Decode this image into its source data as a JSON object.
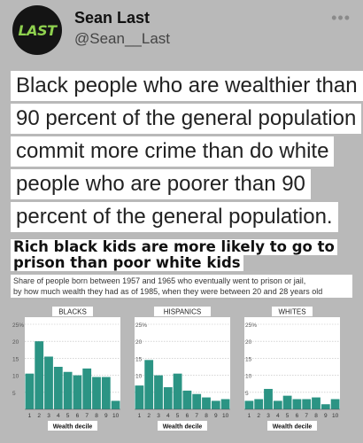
{
  "post": {
    "author_name": "Sean Last",
    "author_handle": "@Sean__Last",
    "avatar_text": "LAST",
    "more_icon": "more-horizontal-icon",
    "caption_lines": [
      "Black people who are wealthier than",
      "90 percent of the general population",
      "commit more crime than do white",
      "people who are poorer than 90",
      "percent of the general population."
    ]
  },
  "figure": {
    "title_lines": [
      "Rich black kids are more likely to go to",
      "prison than poor white kids"
    ],
    "subtitle_lines": [
      "Share of people born between 1957 and 1965 who eventually went to prison or jail,",
      "by how much wealth they had as of 1985, when they were between 20 and 28 years old"
    ]
  },
  "chart_data": [
    {
      "type": "bar",
      "title": "BLACKS",
      "xlabel": "Wealth decile",
      "ylabel": "",
      "categories": [
        "1",
        "2",
        "3",
        "4",
        "5",
        "6",
        "7",
        "8",
        "9",
        "10"
      ],
      "values": [
        10.5,
        20,
        15.5,
        12.5,
        11,
        10,
        12,
        9.5,
        9.5,
        2.5
      ],
      "y_ticks": [
        "5",
        "10",
        "15",
        "20",
        "25%"
      ],
      "ylim": [
        0,
        25
      ],
      "color": "#2b9484"
    },
    {
      "type": "bar",
      "title": "HISPANICS",
      "xlabel": "Wealth decile",
      "ylabel": "",
      "categories": [
        "1",
        "2",
        "3",
        "4",
        "5",
        "6",
        "7",
        "8",
        "9",
        "10"
      ],
      "values": [
        7,
        14.5,
        10,
        6.5,
        10.5,
        5.5,
        4.5,
        3.5,
        2.5,
        3
      ],
      "y_ticks": [
        "5",
        "10",
        "15",
        "20",
        "25%"
      ],
      "ylim": [
        0,
        25
      ],
      "color": "#2b9484"
    },
    {
      "type": "bar",
      "title": "WHITES",
      "xlabel": "Wealth decile",
      "ylabel": "",
      "categories": [
        "1",
        "2",
        "3",
        "4",
        "5",
        "6",
        "7",
        "8",
        "9",
        "10"
      ],
      "values": [
        2.5,
        3,
        6,
        2.5,
        4,
        3,
        3,
        3.5,
        1.5,
        3
      ],
      "y_ticks": [
        "5",
        "10",
        "15",
        "20",
        "25%"
      ],
      "ylim": [
        0,
        25
      ],
      "color": "#2b9484"
    }
  ]
}
